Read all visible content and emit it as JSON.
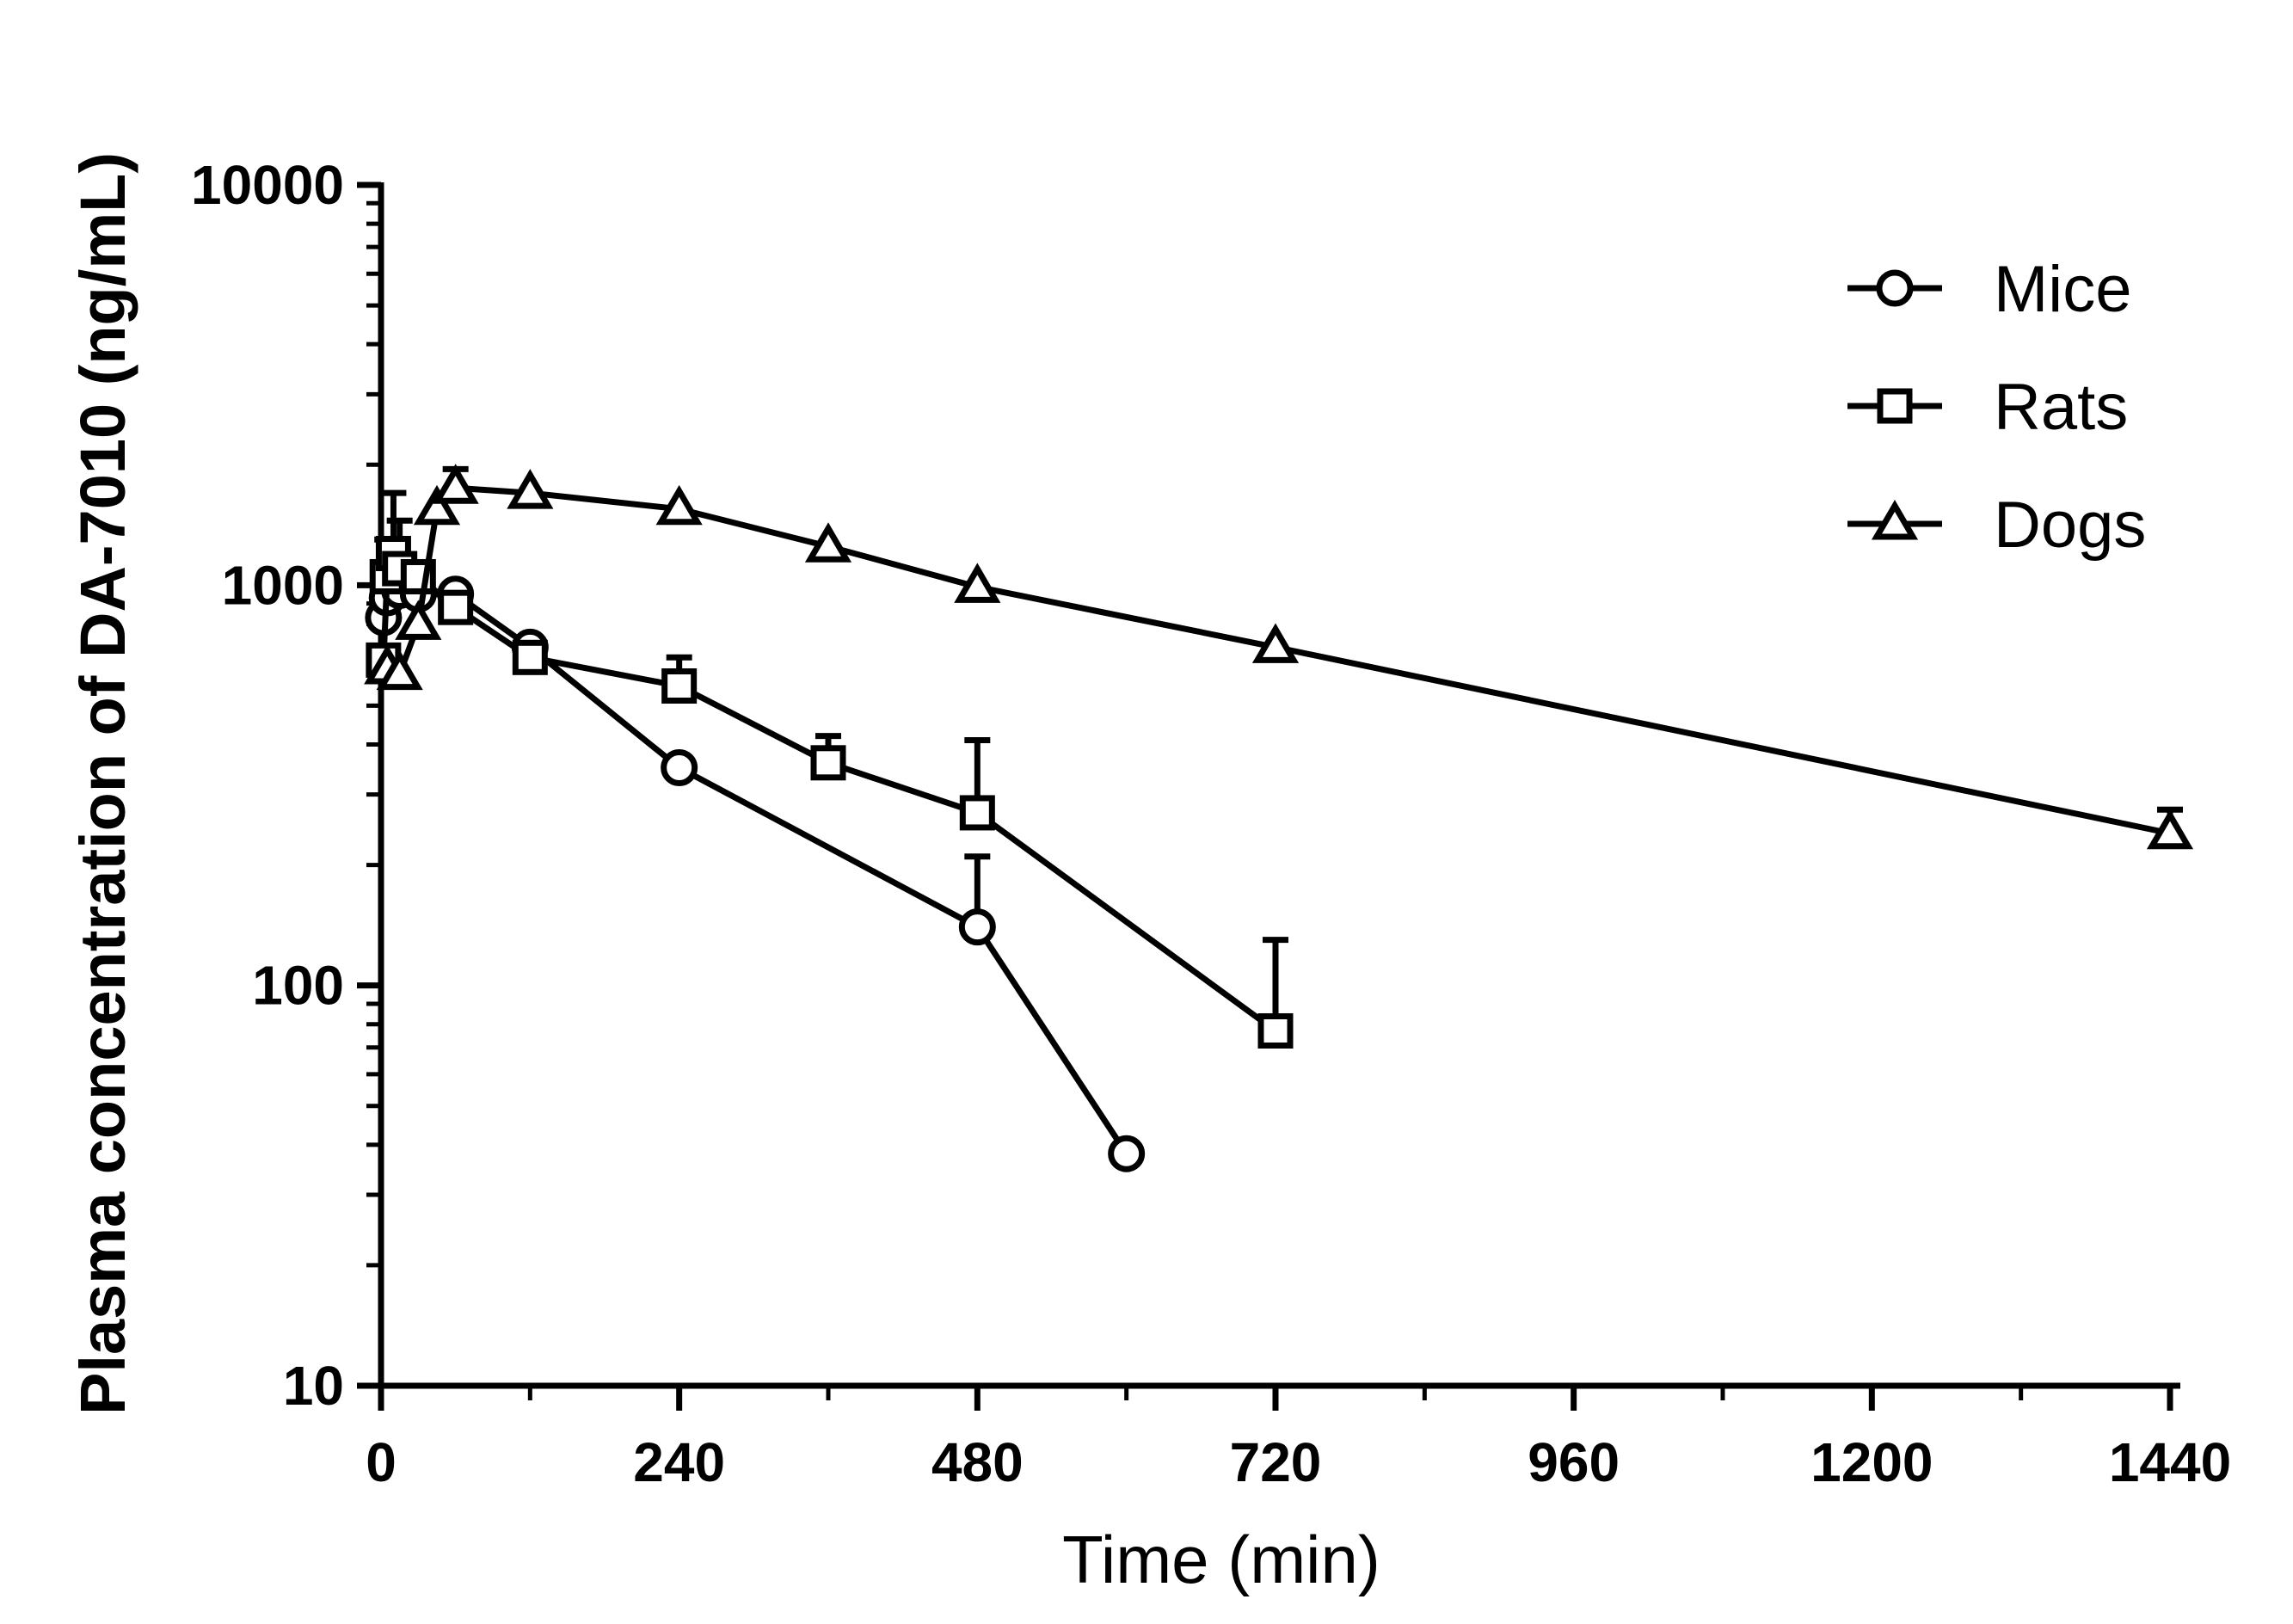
{
  "chart_data": {
    "type": "line",
    "title": "",
    "xlabel": "Time (min)",
    "ylabel": "Plasma concentration of DA-7010 (ng/mL)",
    "xscale": "linear",
    "yscale": "log",
    "xlim": [
      0,
      1440
    ],
    "ylim": [
      10,
      10000
    ],
    "xticks": [
      0,
      240,
      480,
      720,
      960,
      1200,
      1440
    ],
    "xtick_labels": [
      "0",
      "240",
      "480",
      "720",
      "960",
      "1200",
      "1440"
    ],
    "yticks": [
      10,
      100,
      1000,
      10000
    ],
    "ytick_labels": [
      "10",
      "100",
      "1000",
      "10000"
    ],
    "legend_position": "top-right",
    "series": [
      {
        "name": "Mice",
        "marker": "circle",
        "x": [
          2,
          5,
          15,
          30,
          60,
          120,
          240,
          480,
          600
        ],
        "y": [
          830,
          930,
          970,
          950,
          950,
          700,
          350,
          140,
          38
        ],
        "err_upper": [
          null,
          null,
          null,
          null,
          null,
          null,
          null,
          210,
          null
        ]
      },
      {
        "name": "Rats",
        "marker": "square",
        "x": [
          2,
          5,
          10,
          15,
          30,
          60,
          120,
          240,
          360,
          480,
          720
        ],
        "y": [
          650,
          1050,
          1200,
          1100,
          1050,
          880,
          660,
          560,
          360,
          270,
          77
        ],
        "err_upper": [
          null,
          1300,
          1700,
          1450,
          null,
          null,
          null,
          660,
          420,
          410,
          130
        ]
      },
      {
        "name": "Dogs",
        "marker": "triangle",
        "x": [
          5,
          15,
          30,
          45,
          60,
          120,
          240,
          360,
          480,
          720,
          1440
        ],
        "y": [
          620,
          600,
          800,
          1550,
          1750,
          1700,
          1550,
          1250,
          990,
          700,
          240
        ],
        "err_upper": [
          null,
          null,
          null,
          null,
          1950,
          null,
          null,
          null,
          null,
          null,
          275
        ]
      }
    ]
  }
}
